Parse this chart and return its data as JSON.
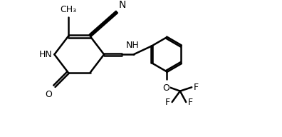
{
  "bg_color": "#ffffff",
  "line_color": "#000000",
  "line_width": 1.8,
  "font_size": 9,
  "fig_width": 3.96,
  "fig_height": 1.92,
  "dpi": 100,
  "xlim": [
    0,
    11
  ],
  "ylim": [
    0,
    6
  ]
}
